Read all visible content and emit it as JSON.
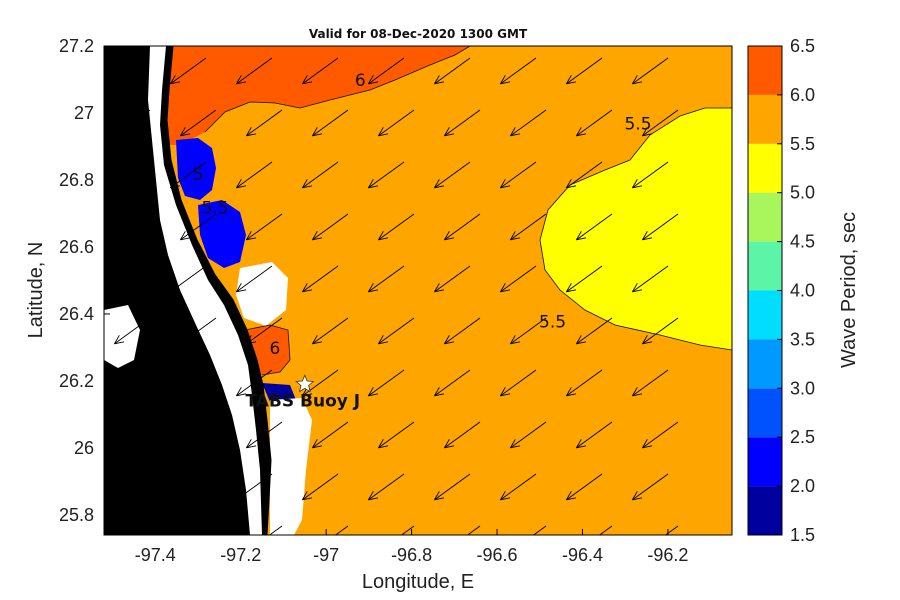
{
  "title": "Valid for 08-Dec-2020 1300 GMT",
  "x_axis": {
    "label": "Longitude, E",
    "range": [
      -97.52,
      -96.05
    ],
    "ticks": [
      -97.4,
      -97.2,
      -97.0,
      -96.8,
      -96.6,
      -96.4,
      -96.2
    ],
    "tick_labels": [
      "-97.4",
      "-97.2",
      "-97",
      "-96.8",
      "-96.6",
      "-96.4",
      "-96.2"
    ]
  },
  "y_axis": {
    "label": "Latitude, N",
    "range": [
      25.74,
      27.2
    ],
    "ticks": [
      25.8,
      26.0,
      26.2,
      26.4,
      26.6,
      26.8,
      27.0,
      27.2
    ],
    "tick_labels": [
      "25.8",
      "26",
      "26.2",
      "26.4",
      "26.6",
      "26.8",
      "27",
      "27.2"
    ]
  },
  "colorbar": {
    "label": "Wave Period, sec",
    "range": [
      1.5,
      6.5
    ],
    "levels": [
      {
        "from": 1.5,
        "to": 2.0,
        "color": "#00009e"
      },
      {
        "from": 2.0,
        "to": 2.5,
        "color": "#0000ff"
      },
      {
        "from": 2.5,
        "to": 3.0,
        "color": "#0052ff"
      },
      {
        "from": 3.0,
        "to": 3.5,
        "color": "#0099ff"
      },
      {
        "from": 3.5,
        "to": 4.0,
        "color": "#00ddff"
      },
      {
        "from": 4.0,
        "to": 4.5,
        "color": "#5cf5a8"
      },
      {
        "from": 4.5,
        "to": 5.0,
        "color": "#a8f55c"
      },
      {
        "from": 5.0,
        "to": 5.5,
        "color": "#ffff00"
      },
      {
        "from": 5.5,
        "to": 6.0,
        "color": "#ffa500"
      },
      {
        "from": 6.0,
        "to": 6.5,
        "color": "#ff5a00"
      }
    ],
    "tick_labels": [
      "1.5",
      "2.0",
      "2.5",
      "3.0",
      "3.5",
      "4.0",
      "4.5",
      "5.0",
      "5.5",
      "6.0",
      "6.5"
    ]
  },
  "contour_labels": [
    {
      "text": "6",
      "lon": -96.92,
      "lat": 27.08
    },
    {
      "text": "5.5",
      "lon": -96.27,
      "lat": 26.95
    },
    {
      "text": "5.5",
      "lon": -96.47,
      "lat": 26.36
    },
    {
      "text": "6",
      "lon": -97.12,
      "lat": 26.28
    },
    {
      "text": "5",
      "lon": -97.3,
      "lat": 26.8
    },
    {
      "text": "5.5",
      "lon": -97.26,
      "lat": 26.7
    }
  ],
  "station": {
    "label": "TABS Buoy J",
    "lon": -97.05,
    "lat": 26.19
  },
  "legend_colors": {
    "land": "#000000",
    "nodata": "#ffffff",
    "arrow": "#000000"
  }
}
